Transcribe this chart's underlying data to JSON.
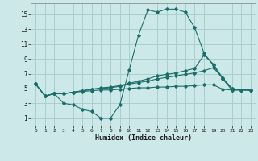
{
  "xlabel": "Humidex (Indice chaleur)",
  "bg_color": "#cce8e8",
  "grid_color": "#aacece",
  "line_color": "#1a6e6a",
  "xlim": [
    -0.5,
    23.5
  ],
  "ylim": [
    0,
    16.5
  ],
  "xticks": [
    0,
    1,
    2,
    3,
    4,
    5,
    6,
    7,
    8,
    9,
    10,
    11,
    12,
    13,
    14,
    15,
    16,
    17,
    18,
    19,
    20,
    21,
    22,
    23
  ],
  "yticks": [
    1,
    3,
    5,
    7,
    9,
    11,
    13,
    15
  ],
  "lines": [
    {
      "x": [
        0,
        1,
        2,
        3,
        4,
        5,
        6,
        7,
        8,
        9,
        10,
        11,
        12,
        13,
        14,
        15,
        16,
        17,
        18,
        19,
        20,
        21,
        22,
        23
      ],
      "y": [
        5.6,
        4.0,
        4.3,
        3.0,
        2.8,
        2.2,
        1.9,
        1.0,
        1.0,
        2.8,
        7.5,
        12.2,
        15.6,
        15.3,
        15.7,
        15.7,
        15.3,
        13.2,
        9.8,
        8.1,
        6.3,
        4.8,
        4.8,
        4.8
      ]
    },
    {
      "x": [
        0,
        1,
        2,
        3,
        4,
        5,
        6,
        7,
        8,
        9,
        10,
        11,
        12,
        13,
        14,
        15,
        16,
        17,
        18,
        19,
        20,
        21,
        22,
        23
      ],
      "y": [
        5.6,
        4.0,
        4.3,
        4.3,
        4.5,
        4.7,
        4.9,
        5.1,
        5.2,
        5.4,
        5.7,
        6.0,
        6.3,
        6.7,
        6.9,
        7.1,
        7.4,
        7.7,
        9.5,
        8.3,
        6.4,
        5.0,
        4.8,
        4.8
      ]
    },
    {
      "x": [
        0,
        1,
        2,
        3,
        4,
        5,
        6,
        7,
        8,
        9,
        10,
        11,
        12,
        13,
        14,
        15,
        16,
        17,
        18,
        19,
        20,
        21,
        22,
        23
      ],
      "y": [
        5.6,
        4.0,
        4.3,
        4.3,
        4.5,
        4.7,
        4.9,
        5.0,
        5.1,
        5.3,
        5.6,
        5.8,
        6.0,
        6.3,
        6.5,
        6.7,
        6.9,
        7.1,
        7.4,
        7.8,
        6.4,
        5.0,
        4.8,
        4.8
      ]
    },
    {
      "x": [
        0,
        1,
        2,
        3,
        4,
        5,
        6,
        7,
        8,
        9,
        10,
        11,
        12,
        13,
        14,
        15,
        16,
        17,
        18,
        19,
        20,
        21,
        22,
        23
      ],
      "y": [
        5.6,
        4.0,
        4.3,
        4.3,
        4.5,
        4.6,
        4.7,
        4.8,
        4.8,
        4.9,
        5.0,
        5.1,
        5.1,
        5.2,
        5.2,
        5.3,
        5.3,
        5.4,
        5.5,
        5.5,
        4.9,
        4.8,
        4.8,
        4.8
      ]
    }
  ]
}
